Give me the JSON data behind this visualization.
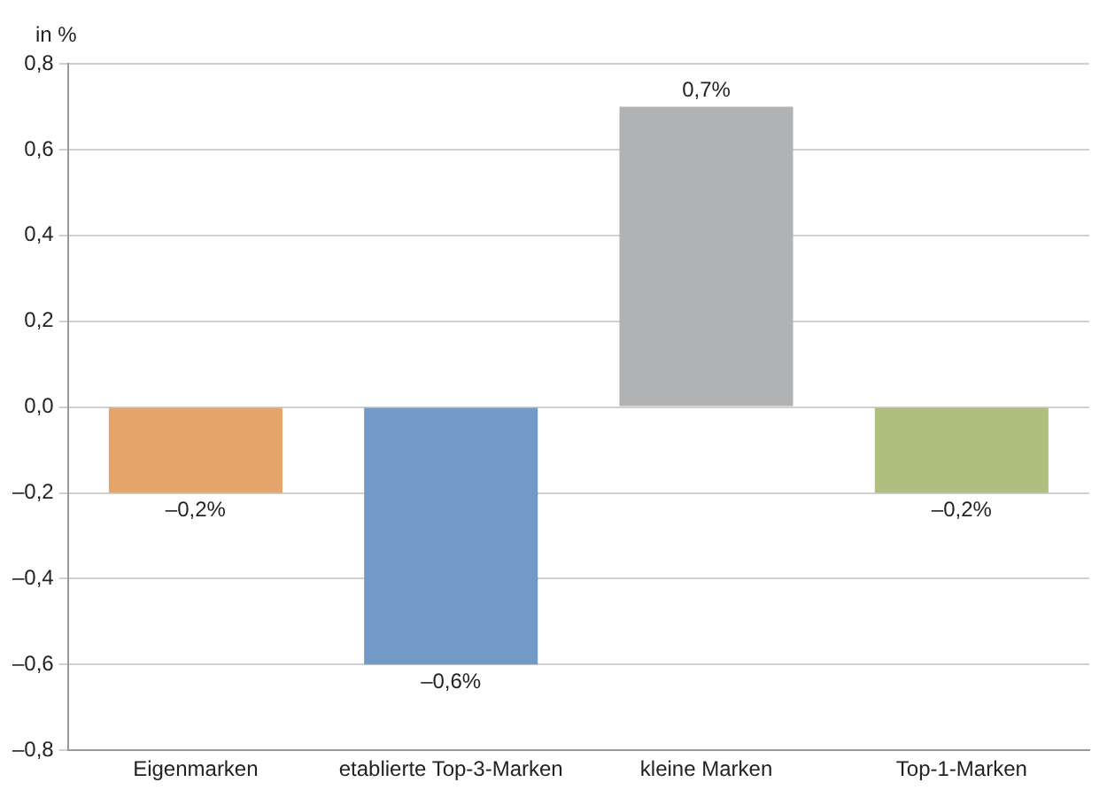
{
  "chart_data": {
    "type": "bar",
    "ylabel": "in %",
    "categories": [
      "Eigenmarken",
      "etablierte Top-3-Marken",
      "kleine Marken",
      "Top-1-Marken"
    ],
    "values": [
      -0.2,
      -0.6,
      0.7,
      -0.2
    ],
    "colors": [
      "#e5a46a",
      "#7399c6",
      "#b1b2b4",
      "#aebf80"
    ],
    "value_labels": [
      "–0,2%",
      "–0,6%",
      "0,7%",
      "–0,2%"
    ],
    "ylim": [
      -0.8,
      0.8
    ],
    "yticks": [
      {
        "value": -0.8,
        "label": "–0,8"
      },
      {
        "value": -0.6,
        "label": "–0,6"
      },
      {
        "value": -0.4,
        "label": "–0,4"
      },
      {
        "value": -0.2,
        "label": "–0,2"
      },
      {
        "value": 0,
        "label": "0,0"
      },
      {
        "value": 0.2,
        "label": "0,2"
      },
      {
        "value": 0.4,
        "label": "0,4"
      },
      {
        "value": 0.6,
        "label": "0,6"
      },
      {
        "value": 0.8,
        "label": "0,8"
      }
    ],
    "grid": "y",
    "legend": false
  }
}
